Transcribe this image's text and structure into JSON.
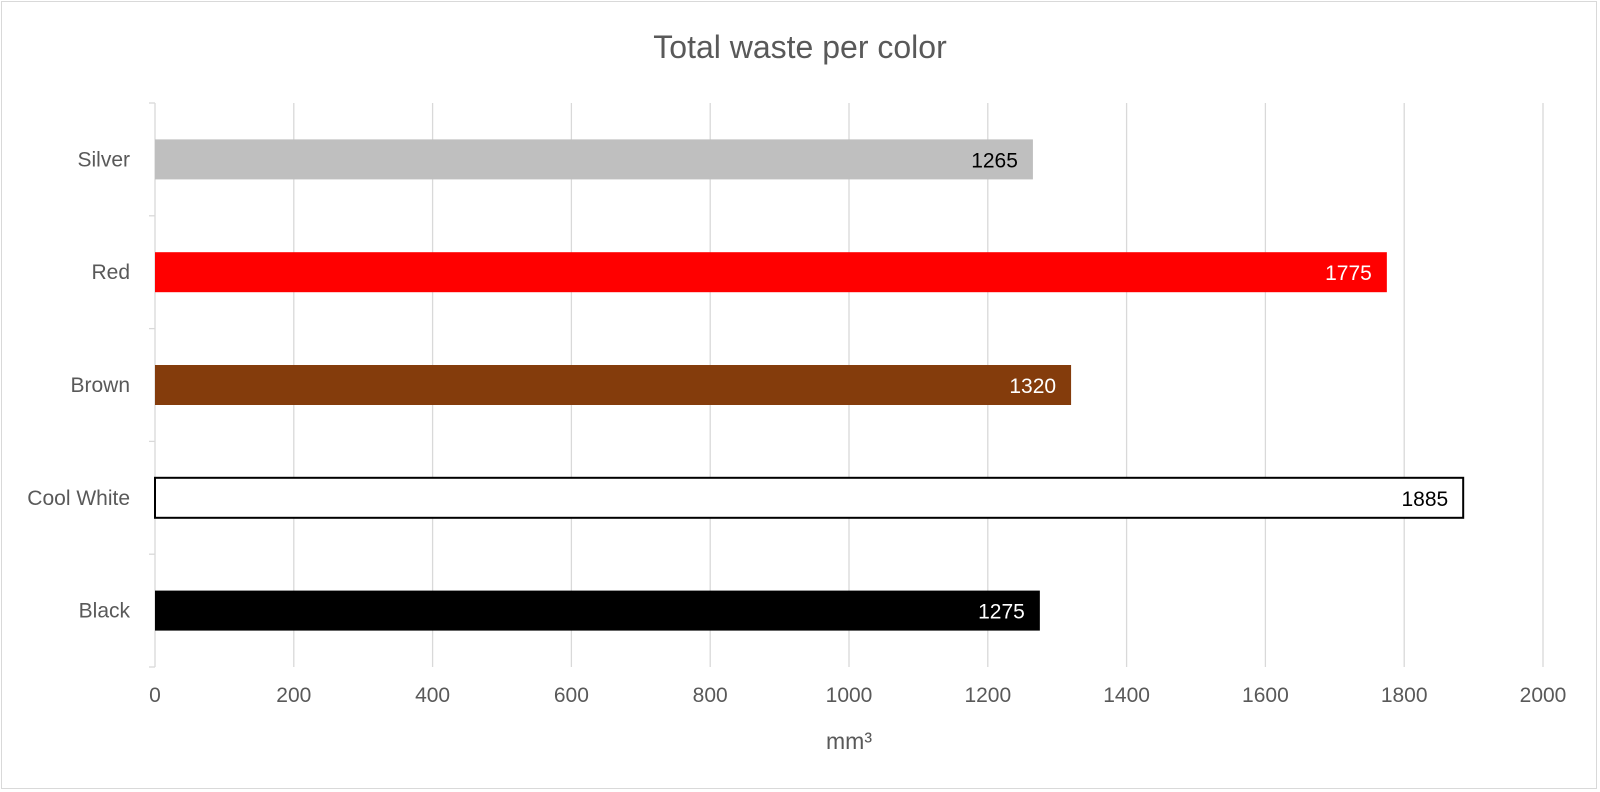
{
  "chart_data": {
    "type": "bar",
    "orientation": "horizontal",
    "title": "Total waste per color",
    "xlabel": "mm³",
    "ylabel": "",
    "categories": [
      "Silver",
      "Red",
      "Brown",
      "Cool White",
      "Black"
    ],
    "values": [
      1265,
      1775,
      1320,
      1885,
      1275
    ],
    "data_labels": [
      "1265",
      "1775",
      "1320",
      "1885",
      "1275"
    ],
    "xlim": [
      0,
      2000
    ],
    "x_ticks": [
      "0",
      "200",
      "400",
      "600",
      "800",
      "1000",
      "1200",
      "1400",
      "1600",
      "1800",
      "2000"
    ],
    "grid": "vertical",
    "legend": "none",
    "bar_colors": [
      "#bfbfbf",
      "#ff0000",
      "#843c0c",
      "#ffffff",
      "#000000"
    ],
    "bar_outlines": [
      "none",
      "none",
      "none",
      "#000000",
      "none"
    ],
    "label_colors": [
      "#000000",
      "#ffffff",
      "#ffffff",
      "#000000",
      "#ffffff"
    ]
  }
}
